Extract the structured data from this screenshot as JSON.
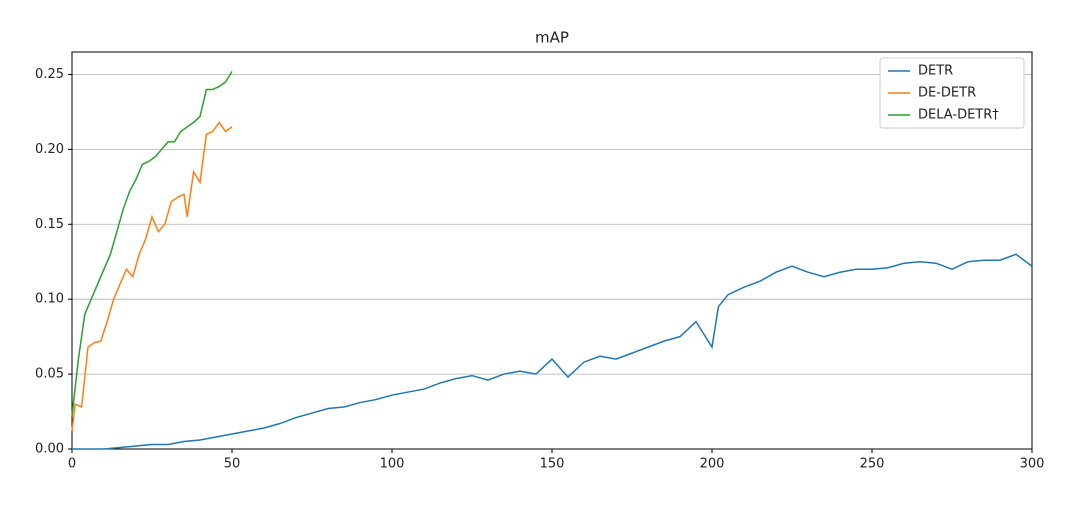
{
  "chart_data": {
    "type": "line",
    "title": "mAP",
    "xlim": [
      0,
      300
    ],
    "xticks": [
      0,
      50,
      100,
      150,
      200,
      250,
      300
    ],
    "ylim": [
      0,
      0.265
    ],
    "yticks": [
      {
        "value": 0,
        "label": "0.00"
      },
      0.05,
      {
        "value": 0.1,
        "label": "0.10"
      },
      0.15,
      {
        "value": 0.2,
        "label": "0.20"
      },
      0.25
    ],
    "grid": true,
    "legend": "upper right",
    "series": [
      {
        "name": "DETR",
        "color": "#1f77b4",
        "x": [
          0,
          5,
          10,
          15,
          20,
          25,
          30,
          35,
          40,
          45,
          50,
          55,
          60,
          65,
          70,
          75,
          80,
          85,
          90,
          95,
          100,
          105,
          110,
          115,
          120,
          125,
          130,
          135,
          140,
          145,
          150,
          155,
          160,
          165,
          170,
          175,
          180,
          185,
          190,
          195,
          200,
          202,
          205,
          210,
          215,
          220,
          225,
          230,
          235,
          240,
          245,
          250,
          255,
          260,
          265,
          270,
          275,
          280,
          285,
          290,
          295,
          300
        ],
        "values": [
          0,
          0,
          0,
          0.001,
          0.002,
          0.003,
          0.003,
          0.005,
          0.006,
          0.008,
          0.01,
          0.012,
          0.014,
          0.017,
          0.021,
          0.024,
          0.027,
          0.028,
          0.031,
          0.033,
          0.036,
          0.038,
          0.04,
          0.044,
          0.047,
          0.049,
          0.046,
          0.05,
          0.052,
          0.05,
          0.06,
          0.048,
          0.058,
          0.062,
          0.06,
          0.064,
          0.068,
          0.072,
          0.075,
          0.085,
          0.068,
          0.095,
          0.103,
          0.108,
          0.112,
          0.118,
          0.122,
          0.118,
          0.115,
          0.118,
          0.12,
          0.12,
          0.121,
          0.124,
          0.125,
          0.124,
          0.12,
          0.125,
          0.126,
          0.126,
          0.13,
          0.122
        ]
      },
      {
        "name": "DE-DETR",
        "color": "#ff7f0e",
        "x": [
          0,
          1,
          3,
          5,
          7,
          9,
          11,
          13,
          15,
          17,
          19,
          21,
          23,
          25,
          27,
          29,
          31,
          33,
          35,
          36,
          38,
          40,
          42,
          44,
          46,
          48,
          50
        ],
        "values": [
          0.012,
          0.03,
          0.028,
          0.068,
          0.071,
          0.072,
          0.085,
          0.1,
          0.11,
          0.12,
          0.115,
          0.13,
          0.14,
          0.155,
          0.145,
          0.15,
          0.165,
          0.168,
          0.17,
          0.155,
          0.185,
          0.178,
          0.21,
          0.212,
          0.218,
          0.212,
          0.215
        ]
      },
      {
        "name": "DELA-DETR†",
        "color": "#2ca02c",
        "x": [
          0,
          2,
          4,
          6,
          8,
          10,
          12,
          14,
          16,
          18,
          20,
          22,
          24,
          26,
          28,
          30,
          32,
          34,
          36,
          38,
          40,
          42,
          44,
          46,
          48,
          50
        ],
        "values": [
          0.022,
          0.06,
          0.09,
          0.1,
          0.11,
          0.12,
          0.13,
          0.145,
          0.16,
          0.172,
          0.18,
          0.19,
          0.192,
          0.195,
          0.2,
          0.205,
          0.205,
          0.212,
          0.215,
          0.218,
          0.222,
          0.24,
          0.24,
          0.242,
          0.245,
          0.252
        ]
      }
    ]
  }
}
